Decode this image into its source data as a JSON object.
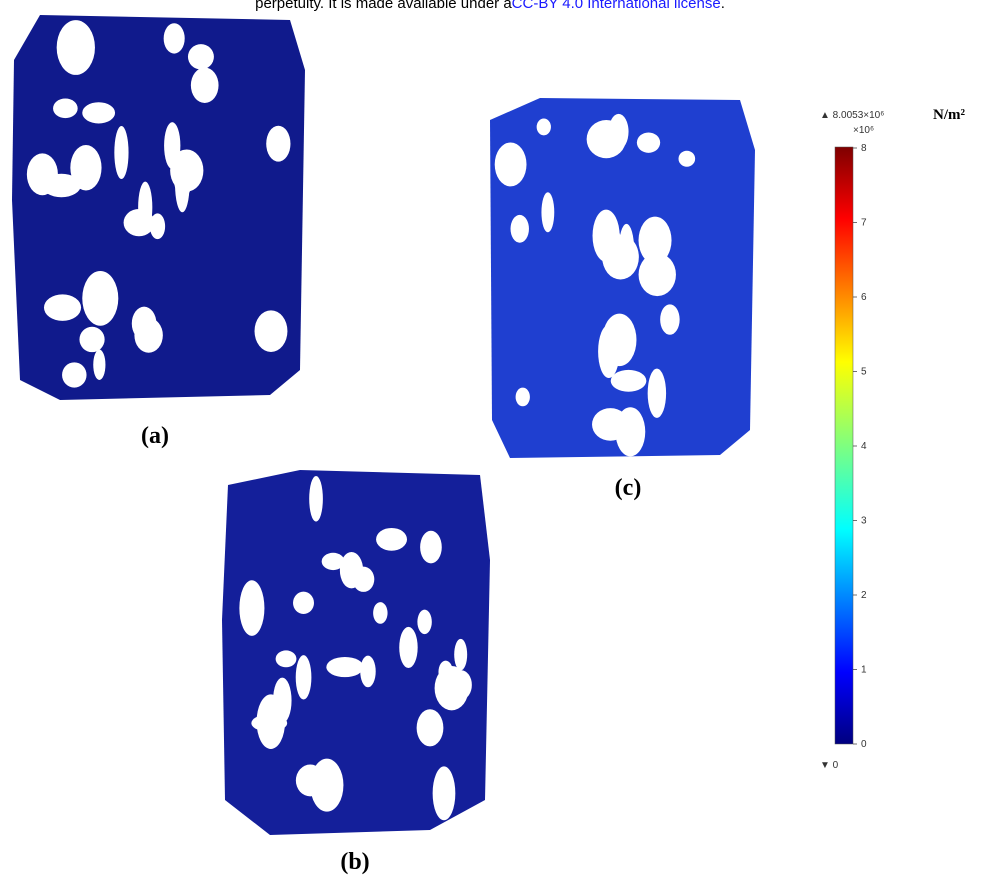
{
  "header": {
    "text": "perpetuity. It is made available under a",
    "link": "CC-BY 4.0 International license",
    "end": "."
  },
  "panels": [
    {
      "label": "(a)"
    },
    {
      "label": "(b)"
    },
    {
      "label": "(c)"
    }
  ],
  "colorbar": {
    "max_label": "▲ 8.0053×10⁶",
    "unit": "N/m²",
    "multiplier": "×10⁶",
    "min_label": "▼ 0",
    "ticks": [
      0,
      1,
      2,
      3,
      4,
      5,
      6,
      7,
      8
    ]
  }
}
